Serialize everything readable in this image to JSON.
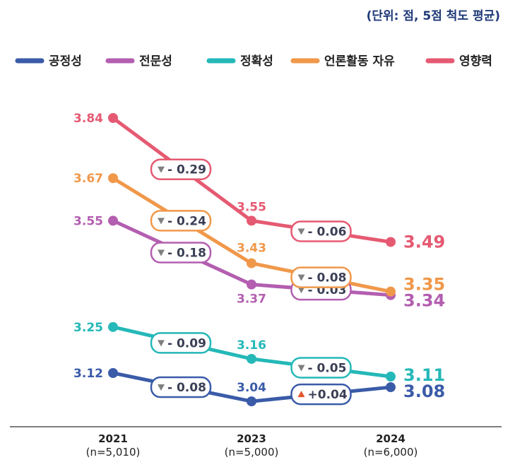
{
  "unit_note": "(단위: 점, 5점 척도 평균)",
  "chart_data": {
    "type": "line",
    "x": [
      "2021",
      "2023",
      "2024"
    ],
    "x_sublabels": [
      "(n=5,010)",
      "(n=5,000)",
      "(n=6,000)"
    ],
    "ylim": [
      3.0,
      3.9
    ],
    "grid": false,
    "legend_position": "top",
    "series": [
      {
        "name": "공정성",
        "color": "#3a5ba8",
        "values": [
          3.12,
          3.04,
          3.08
        ],
        "changes": [
          "- 0.08",
          "+0.04"
        ],
        "change_dirs": [
          "down",
          "up"
        ],
        "labels": [
          "3.12",
          "3.04",
          "3.08"
        ]
      },
      {
        "name": "전문성",
        "color": "#b35eb0",
        "values": [
          3.55,
          3.37,
          3.34
        ],
        "changes": [
          "- 0.18",
          "- 0.03"
        ],
        "change_dirs": [
          "down",
          "down"
        ],
        "labels": [
          "3.55",
          "3.37",
          "3.34"
        ]
      },
      {
        "name": "정확성",
        "color": "#25b8b8",
        "values": [
          3.25,
          3.16,
          3.11
        ],
        "changes": [
          "- 0.09",
          "- 0.05"
        ],
        "change_dirs": [
          "down",
          "down"
        ],
        "labels": [
          "3.25",
          "3.16",
          "3.11"
        ]
      },
      {
        "name": "언론활동 자유",
        "color": "#f0984a",
        "values": [
          3.67,
          3.43,
          3.35
        ],
        "changes": [
          "- 0.24",
          "- 0.08"
        ],
        "change_dirs": [
          "down",
          "down"
        ],
        "labels": [
          "3.67",
          "3.43",
          "3.35"
        ]
      },
      {
        "name": "영향력",
        "color": "#e55a72",
        "values": [
          3.84,
          3.55,
          3.49
        ],
        "changes": [
          "- 0.29",
          "- 0.06"
        ],
        "change_dirs": [
          "down",
          "down"
        ],
        "labels": [
          "3.84",
          "3.55",
          "3.49"
        ]
      }
    ]
  },
  "colors": {
    "down_marker": "#7f7f7f",
    "up_marker": "#e8542b",
    "axis": "#555555"
  }
}
